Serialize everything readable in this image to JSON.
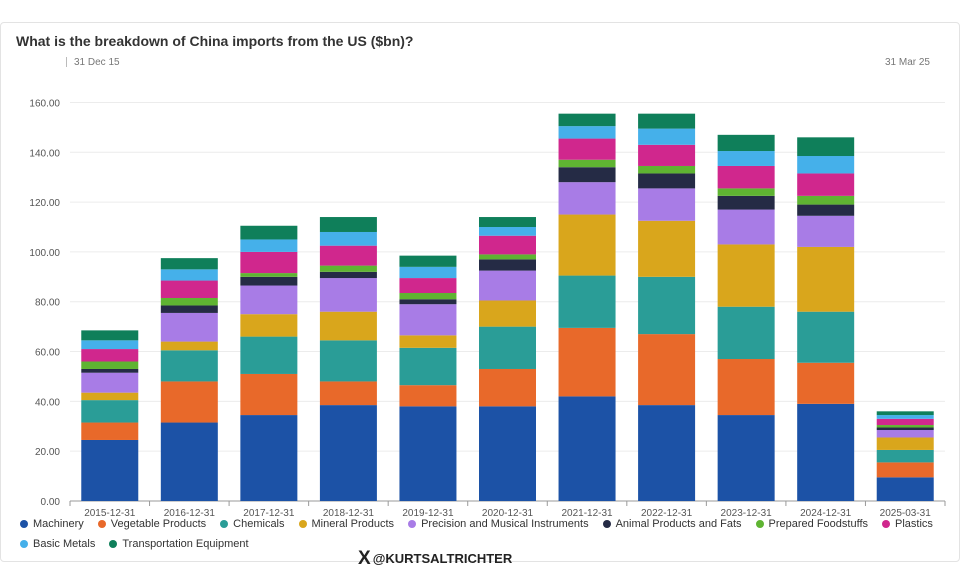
{
  "title": "What is the breakdown of China imports from the US ($bn)?",
  "range": {
    "start": "31 Dec 15",
    "end": "31 Mar 25"
  },
  "watermark": {
    "handle": "@KURTSALTRICHTER",
    "logo": "X"
  },
  "chart_data": {
    "type": "bar",
    "stacked": true,
    "ylim": [
      0,
      165
    ],
    "yticks": [
      "0.00",
      "20.00",
      "40.00",
      "60.00",
      "80.00",
      "100.00",
      "120.00",
      "140.00",
      "160.00"
    ],
    "grid": true,
    "legend_position": "bottom",
    "categories": [
      "2015-12-31",
      "2016-12-31",
      "2017-12-31",
      "2018-12-31",
      "2019-12-31",
      "2020-12-31",
      "2021-12-31",
      "2022-12-31",
      "2023-12-31",
      "2024-12-31",
      "2025-03-31"
    ],
    "series": [
      {
        "name": "Machinery",
        "color": "#1c52a6",
        "values": [
          24.5,
          31.5,
          34.5,
          38.5,
          38,
          38,
          42,
          38.5,
          34.5,
          39,
          9.5
        ]
      },
      {
        "name": "Vegetable Products",
        "color": "#e8692a",
        "values": [
          7,
          16.5,
          16.5,
          9.5,
          8.5,
          15,
          27.5,
          28.5,
          22.5,
          16.5,
          6
        ]
      },
      {
        "name": "Chemicals",
        "color": "#2a9d97",
        "values": [
          9,
          12.5,
          15,
          16.5,
          15,
          17,
          21,
          23,
          21,
          20.5,
          5
        ]
      },
      {
        "name": "Mineral Products",
        "color": "#d9a61c",
        "values": [
          3,
          3.5,
          9,
          11.5,
          5,
          10.5,
          24.5,
          22.5,
          25,
          26,
          5
        ]
      },
      {
        "name": "Precision and Musical Instruments",
        "color": "#a87ce6",
        "values": [
          8,
          11.5,
          11.5,
          13.5,
          12.5,
          12,
          13,
          13,
          14,
          12.5,
          3
        ]
      },
      {
        "name": "Animal Products and Fats",
        "color": "#252b45",
        "values": [
          1.5,
          3,
          3.5,
          2.5,
          2,
          4.5,
          6,
          6,
          5.5,
          4.5,
          1
        ]
      },
      {
        "name": "Prepared Foodstuffs",
        "color": "#5fb432",
        "values": [
          3,
          3,
          1.5,
          2.5,
          2.5,
          2,
          3,
          3,
          3,
          3.5,
          1
        ]
      },
      {
        "name": "Plastics",
        "color": "#d0278d",
        "values": [
          5,
          7,
          8.5,
          8,
          6,
          7.5,
          8.5,
          8.5,
          9,
          9,
          2.5
        ]
      },
      {
        "name": "Basic Metals",
        "color": "#45b0ea",
        "values": [
          3.5,
          4.5,
          5,
          5.5,
          4.5,
          3.5,
          5,
          6.5,
          6,
          7,
          1.5
        ]
      },
      {
        "name": "Transportation Equipment",
        "color": "#0f7f5a",
        "values": [
          4,
          4.5,
          5.5,
          6,
          4.5,
          4,
          5,
          6,
          6.5,
          7.5,
          1.5
        ]
      }
    ]
  }
}
